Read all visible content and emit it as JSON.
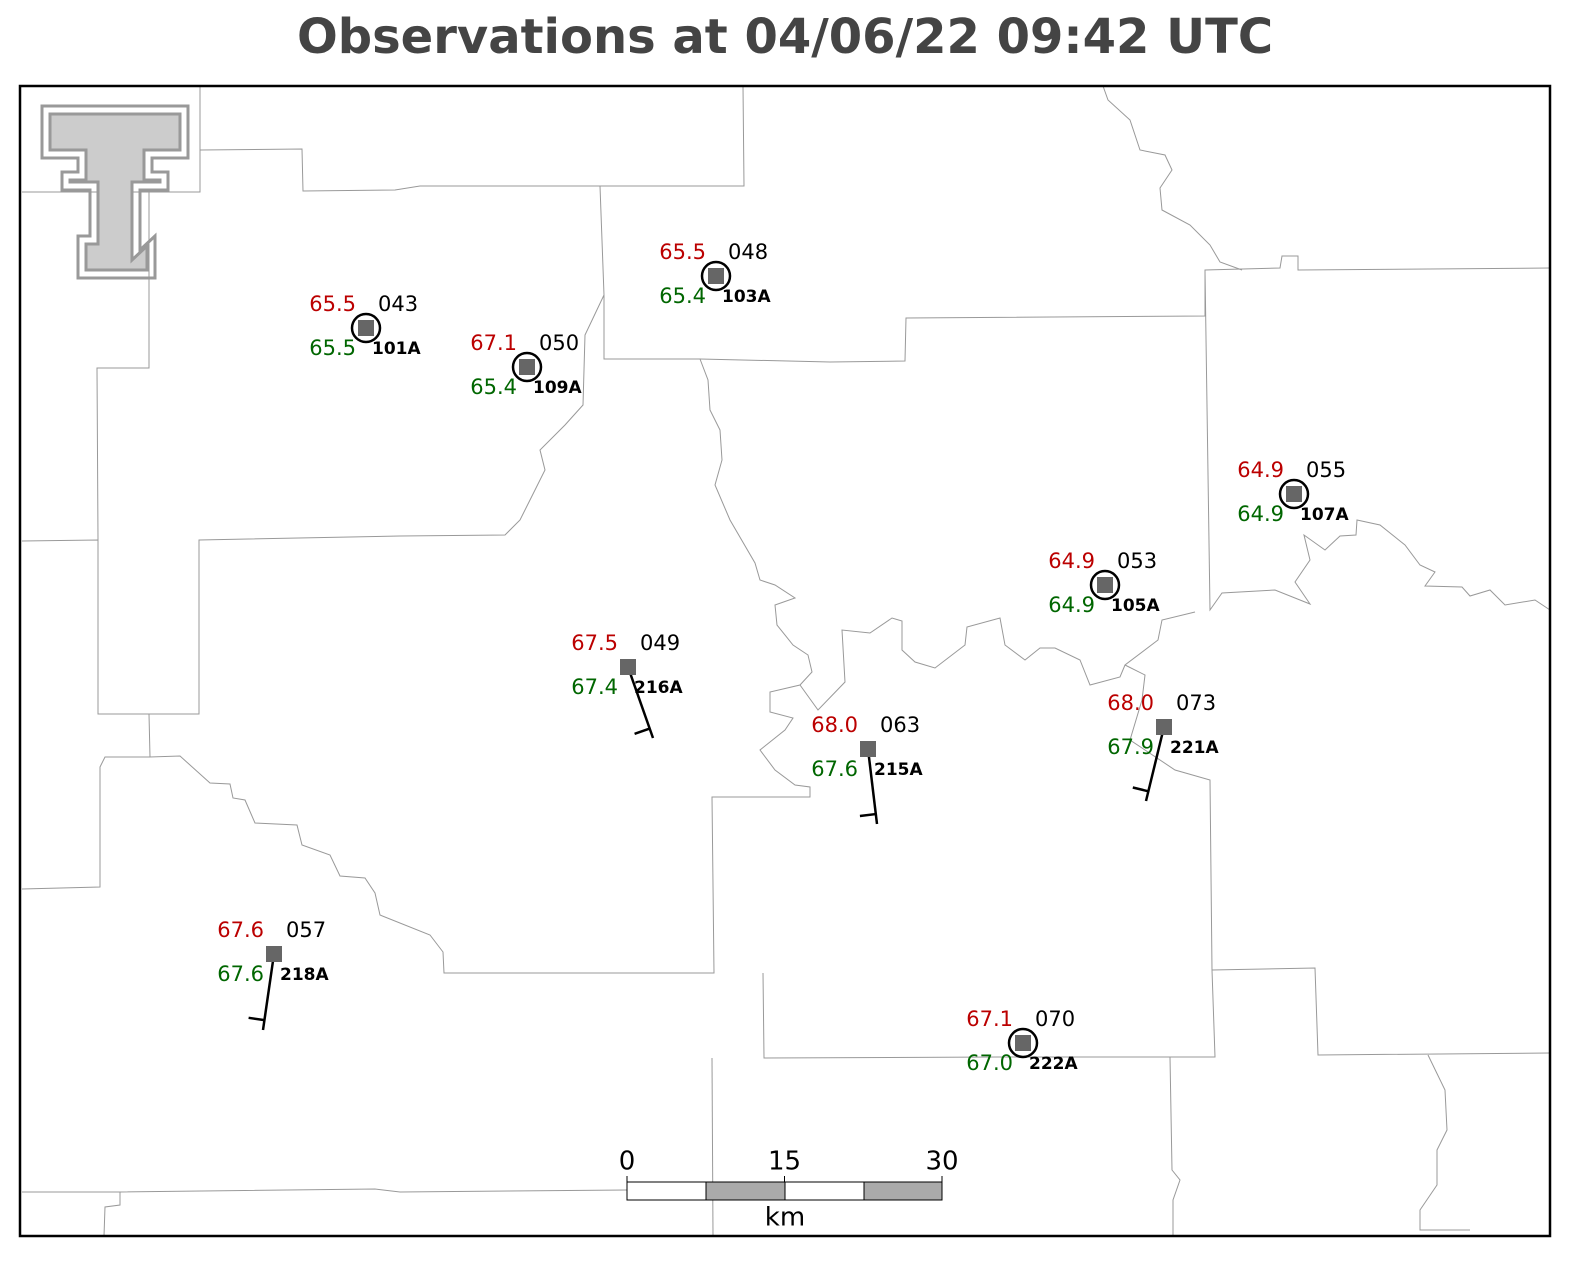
{
  "title": "Observations at 04/06/22 09:42 UTC",
  "stations": [
    {
      "id": "101A",
      "temperature": "65.5",
      "dewpoint": "65.5",
      "pressure": "043"
    },
    {
      "id": "109A",
      "temperature": "67.1",
      "dewpoint": "65.4",
      "pressure": "050"
    },
    {
      "id": "103A",
      "temperature": "65.5",
      "dewpoint": "65.4",
      "pressure": "048"
    },
    {
      "id": "107A",
      "temperature": "64.9",
      "dewpoint": "64.9",
      "pressure": "055"
    },
    {
      "id": "105A",
      "temperature": "64.9",
      "dewpoint": "64.9",
      "pressure": "053"
    },
    {
      "id": "216A",
      "temperature": "67.5",
      "dewpoint": "67.4",
      "pressure": "049"
    },
    {
      "id": "215A",
      "temperature": "68.0",
      "dewpoint": "67.6",
      "pressure": "063"
    },
    {
      "id": "221A",
      "temperature": "68.0",
      "dewpoint": "67.9",
      "pressure": "073"
    },
    {
      "id": "218A",
      "temperature": "67.6",
      "dewpoint": "67.6",
      "pressure": "057"
    },
    {
      "id": "222A",
      "temperature": "67.1",
      "dewpoint": "67.0",
      "pressure": "070"
    }
  ],
  "scale_bar": {
    "ticks": [
      0,
      15,
      30
    ],
    "unit": "km"
  }
}
